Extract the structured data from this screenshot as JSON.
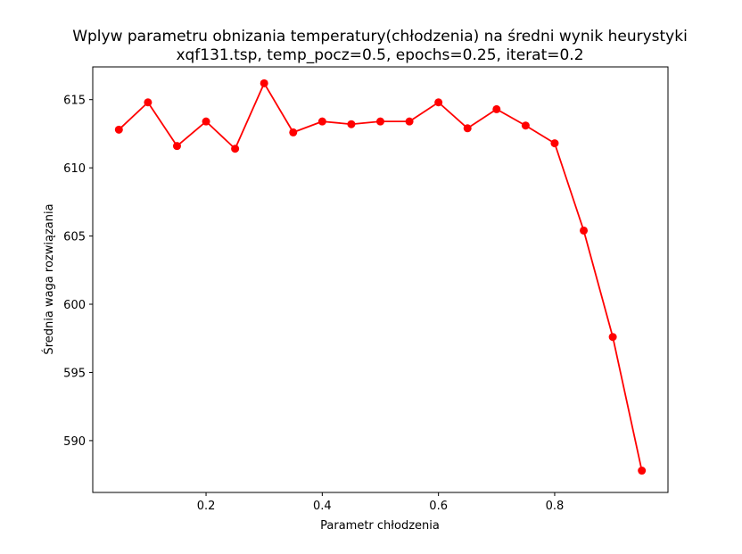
{
  "chart_data": {
    "type": "line",
    "title": "Wplyw parametru obnizania temperatury(chłodzenia) na średni wynik heurystyki",
    "subtitle": "xqf131.tsp, temp_pocz=0.5, epochs=0.25, iterat=0.2",
    "xlabel": "Parametr chłodzenia",
    "ylabel": "Średnia waga rozwiązania",
    "xlim": [
      0.005,
      0.995
    ],
    "ylim": [
      586.2,
      617.4
    ],
    "xticks": [
      0.2,
      0.4,
      0.6,
      0.8
    ],
    "xtick_labels": [
      "0.2",
      "0.4",
      "0.6",
      "0.8"
    ],
    "yticks": [
      590,
      595,
      600,
      605,
      610,
      615
    ],
    "ytick_labels": [
      "590",
      "595",
      "600",
      "605",
      "610",
      "615"
    ],
    "grid": false,
    "series": [
      {
        "color": "#ff0000",
        "marker": "circle",
        "x": [
          0.05,
          0.1,
          0.15,
          0.2,
          0.25,
          0.3,
          0.35,
          0.4,
          0.45,
          0.5,
          0.55,
          0.6,
          0.65,
          0.7,
          0.75,
          0.8,
          0.85,
          0.9,
          0.95
        ],
        "y": [
          612.8,
          614.8,
          611.6,
          613.4,
          611.4,
          616.2,
          612.6,
          613.4,
          613.2,
          613.4,
          613.4,
          614.8,
          612.9,
          614.3,
          613.1,
          611.8,
          605.4,
          597.6,
          587.8
        ]
      }
    ]
  }
}
